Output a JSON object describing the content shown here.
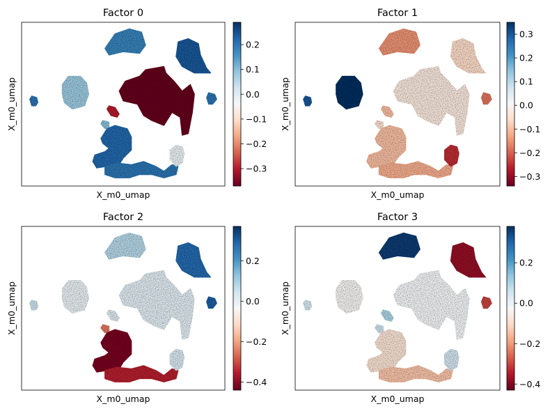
{
  "figure": {
    "background": "#ffffff",
    "colormap": "RdBu"
  },
  "chart_data": [
    {
      "type": "scatter",
      "title": "Factor 0",
      "xlabel": "X_m0_umap",
      "ylabel": "X_m0_umap",
      "xticks": [],
      "yticks": [],
      "colorbar": {
        "vmin": -0.37,
        "vmax": 0.29,
        "ticks": [
          0.2,
          0.1,
          0.0,
          -0.1,
          -0.2,
          -0.3
        ],
        "tick_labels": [
          "0.2",
          "0.1",
          "0.0",
          "−0.1",
          "−0.2",
          "−0.3"
        ]
      },
      "cluster_values": {
        "top_cap": 0.18,
        "upper_right": 0.24,
        "center_big": -0.37,
        "ring_left": 0.08,
        "small_left": 0.2,
        "small_right": 0.2,
        "tiny_mid": -0.3,
        "lower_hook": 0.22,
        "tail": 0.2,
        "tail_end": -0.02,
        "small_piece": 0.1
      }
    },
    {
      "type": "scatter",
      "title": "Factor 1",
      "xlabel": "X_m0_umap",
      "ylabel": "X_m0_umap",
      "xticks": [],
      "yticks": [],
      "colorbar": {
        "vmin": -0.34,
        "vmax": 0.35,
        "ticks": [
          0.3,
          0.2,
          0.1,
          0.0,
          -0.1,
          -0.2,
          -0.3
        ],
        "tick_labels": [
          "0.3",
          "0.2",
          "0.1",
          "0.0",
          "−0.1",
          "−0.2",
          "−0.3"
        ]
      },
      "cluster_values": {
        "top_cap": -0.15,
        "upper_right": -0.06,
        "center_big": -0.03,
        "ring_left": 0.35,
        "small_left": 0.3,
        "small_right": -0.18,
        "tiny_mid": -0.1,
        "lower_hook": -0.1,
        "tail": -0.12,
        "tail_end": -0.25,
        "small_piece": -0.05
      }
    },
    {
      "type": "scatter",
      "title": "Factor 2",
      "xlabel": "X_m0_umap",
      "ylabel": "X_m0_umap",
      "xticks": [],
      "yticks": [],
      "colorbar": {
        "vmin": -0.44,
        "vmax": 0.37,
        "ticks": [
          0.2,
          0.0,
          -0.2,
          -0.4
        ],
        "tick_labels": [
          "0.2",
          "0.0",
          "−0.2",
          "−0.4"
        ]
      },
      "cluster_values": {
        "top_cap": 0.08,
        "upper_right": 0.28,
        "center_big": 0.01,
        "ring_left": -0.01,
        "small_left": 0.05,
        "small_right": 0.3,
        "tiny_mid": 0.02,
        "lower_hook": -0.42,
        "tail": -0.35,
        "tail_end": 0.03,
        "small_piece": -0.25
      }
    },
    {
      "type": "scatter",
      "title": "Factor 3",
      "xlabel": "X_m0_umap",
      "ylabel": "X_m0_umap",
      "xticks": [],
      "yticks": [],
      "colorbar": {
        "vmin": -0.43,
        "vmax": 0.38,
        "ticks": [
          0.2,
          0.0,
          -0.2,
          -0.4
        ],
        "tick_labels": [
          "0.2",
          "0.0",
          "−0.2",
          "−0.4"
        ]
      },
      "cluster_values": {
        "top_cap": 0.36,
        "upper_right": -0.38,
        "center_big": -0.02,
        "ring_left": -0.03,
        "small_left": 0.04,
        "small_right": -0.3,
        "tiny_mid": 0.1,
        "lower_hook": -0.08,
        "tail": -0.14,
        "tail_end": 0.05,
        "small_piece": 0.06
      }
    }
  ]
}
